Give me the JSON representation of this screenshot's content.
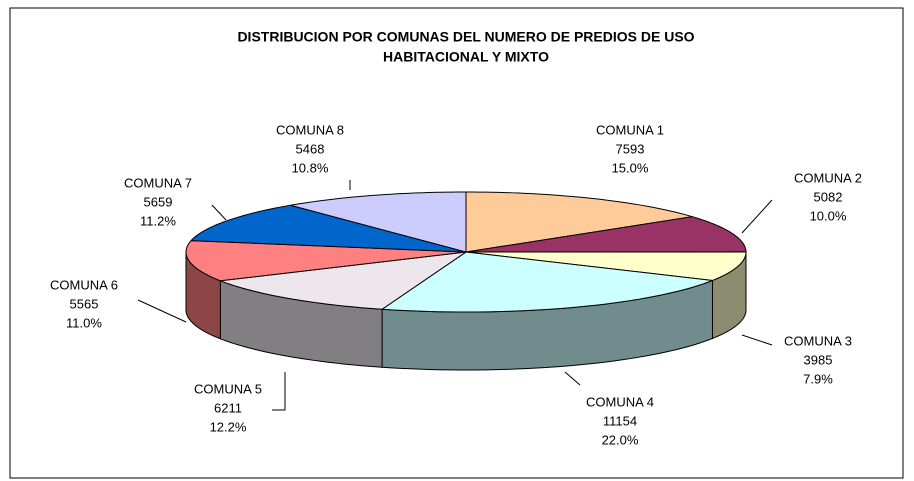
{
  "chart_data": {
    "type": "pie",
    "title": [
      "DISTRIBUCION POR COMUNAS DEL NUMERO DE PREDIOS DE USO",
      "HABITACIONAL Y MIXTO"
    ],
    "categories": [
      "COMUNA 1",
      "COMUNA 2",
      "COMUNA 3",
      "COMUNA 4",
      "COMUNA 5",
      "COMUNA 6",
      "COMUNA 7",
      "COMUNA 8"
    ],
    "counts": [
      7593,
      5082,
      3985,
      11154,
      6211,
      5565,
      5659,
      5468
    ],
    "values": [
      15.0,
      10.0,
      7.9,
      22.0,
      12.2,
      11.0,
      11.2,
      10.8
    ],
    "value_labels": [
      "15.0%",
      "10.0%",
      "7.9%",
      "22.0%",
      "12.2%",
      "11.0%",
      "11.2%",
      "10.8%"
    ],
    "colors": [
      "#FFCC99",
      "#993366",
      "#FFFFCC",
      "#CCFFFF",
      "#EDE6ED",
      "#FF8080",
      "#0066CC",
      "#CCCCFF"
    ],
    "three_d": true
  }
}
